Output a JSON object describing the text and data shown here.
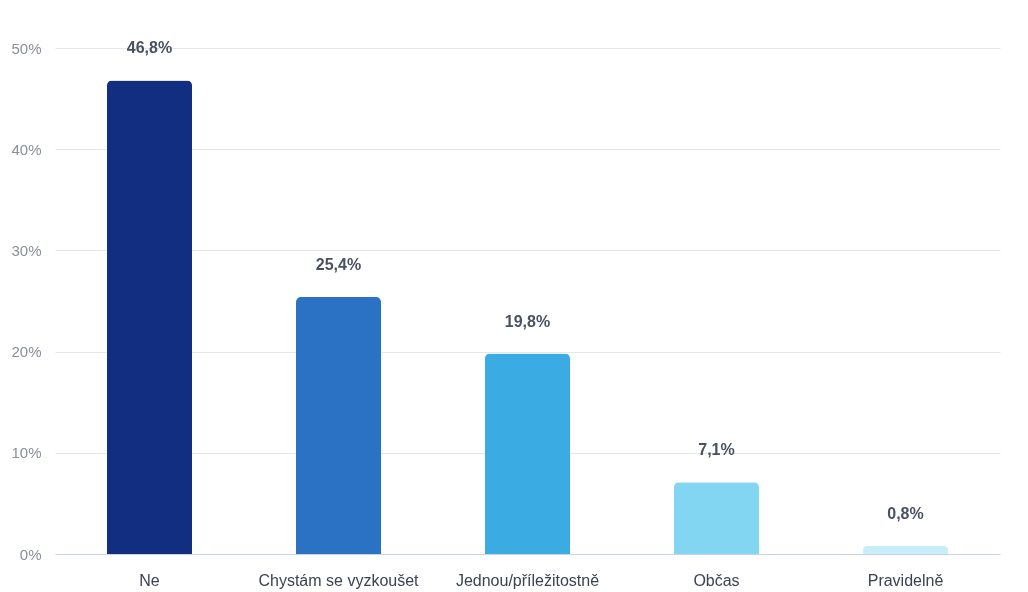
{
  "chart_data": {
    "type": "bar",
    "categories": [
      "Ne",
      "Chystám se vyzkoušet",
      "Jednou/příležitostně",
      "Občas",
      "Pravidelně"
    ],
    "values": [
      46.8,
      25.4,
      19.8,
      7.1,
      0.8
    ],
    "colors": [
      "#112e80",
      "#2b72c4",
      "#3aabe3",
      "#83d6f2",
      "#c9eef9"
    ],
    "value_labels": [
      "46,8%",
      "25,4%",
      "19,8%",
      "7,1%",
      "0,8%"
    ],
    "ylim": [
      0,
      50
    ],
    "yticks": [
      {
        "value": 0,
        "label": "0%"
      },
      {
        "value": 10,
        "label": "10%"
      },
      {
        "value": 20,
        "label": "20%"
      },
      {
        "value": 30,
        "label": "30%"
      },
      {
        "value": 40,
        "label": "40%"
      },
      {
        "value": 50,
        "label": "50%"
      }
    ],
    "grid": "y",
    "legend": false
  }
}
